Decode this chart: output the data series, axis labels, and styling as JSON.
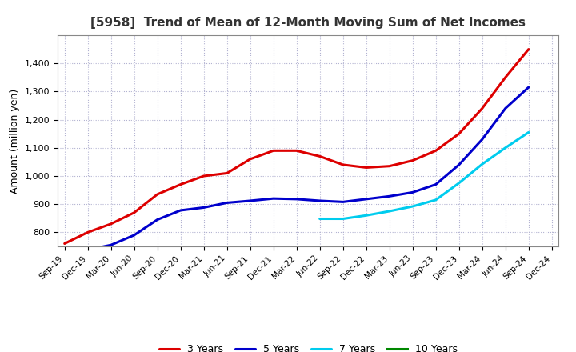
{
  "title": "[5958]  Trend of Mean of 12-Month Moving Sum of Net Incomes",
  "ylabel": "Amount (million yen)",
  "xtick_labels": [
    "Sep-19",
    "Dec-19",
    "Mar-20",
    "Jun-20",
    "Sep-20",
    "Dec-20",
    "Mar-21",
    "Jun-21",
    "Sep-21",
    "Dec-21",
    "Mar-22",
    "Jun-22",
    "Sep-22",
    "Dec-22",
    "Mar-23",
    "Jun-23",
    "Sep-23",
    "Dec-23",
    "Mar-24",
    "Jun-24",
    "Sep-24",
    "Dec-24"
  ],
  "ylim": [
    750,
    1500
  ],
  "yticks": [
    800,
    900,
    1000,
    1100,
    1200,
    1300,
    1400
  ],
  "series": {
    "3 Years": {
      "color": "#DD0000",
      "values": [
        760,
        800,
        830,
        870,
        935,
        970,
        1000,
        1010,
        1060,
        1090,
        1090,
        1070,
        1040,
        1030,
        1035,
        1055,
        1090,
        1150,
        1240,
        1350,
        1450,
        null
      ]
    },
    "5 Years": {
      "color": "#0000CC",
      "values": [
        null,
        738,
        755,
        790,
        845,
        878,
        888,
        905,
        912,
        920,
        918,
        912,
        908,
        918,
        928,
        942,
        970,
        1040,
        1130,
        1240,
        1315,
        null
      ]
    },
    "7 Years": {
      "color": "#00CCEE",
      "values": [
        null,
        null,
        null,
        null,
        null,
        null,
        null,
        null,
        null,
        null,
        null,
        848,
        848,
        860,
        875,
        892,
        915,
        975,
        1042,
        1100,
        1155,
        null
      ]
    },
    "10 Years": {
      "color": "#008800",
      "values": [
        null,
        null,
        null,
        null,
        null,
        null,
        null,
        null,
        null,
        null,
        null,
        null,
        null,
        null,
        null,
        null,
        null,
        null,
        null,
        null,
        null,
        null
      ]
    }
  },
  "legend_order": [
    "3 Years",
    "5 Years",
    "7 Years",
    "10 Years"
  ],
  "background_color": "#FFFFFF",
  "grid_color": "#AAAACC"
}
